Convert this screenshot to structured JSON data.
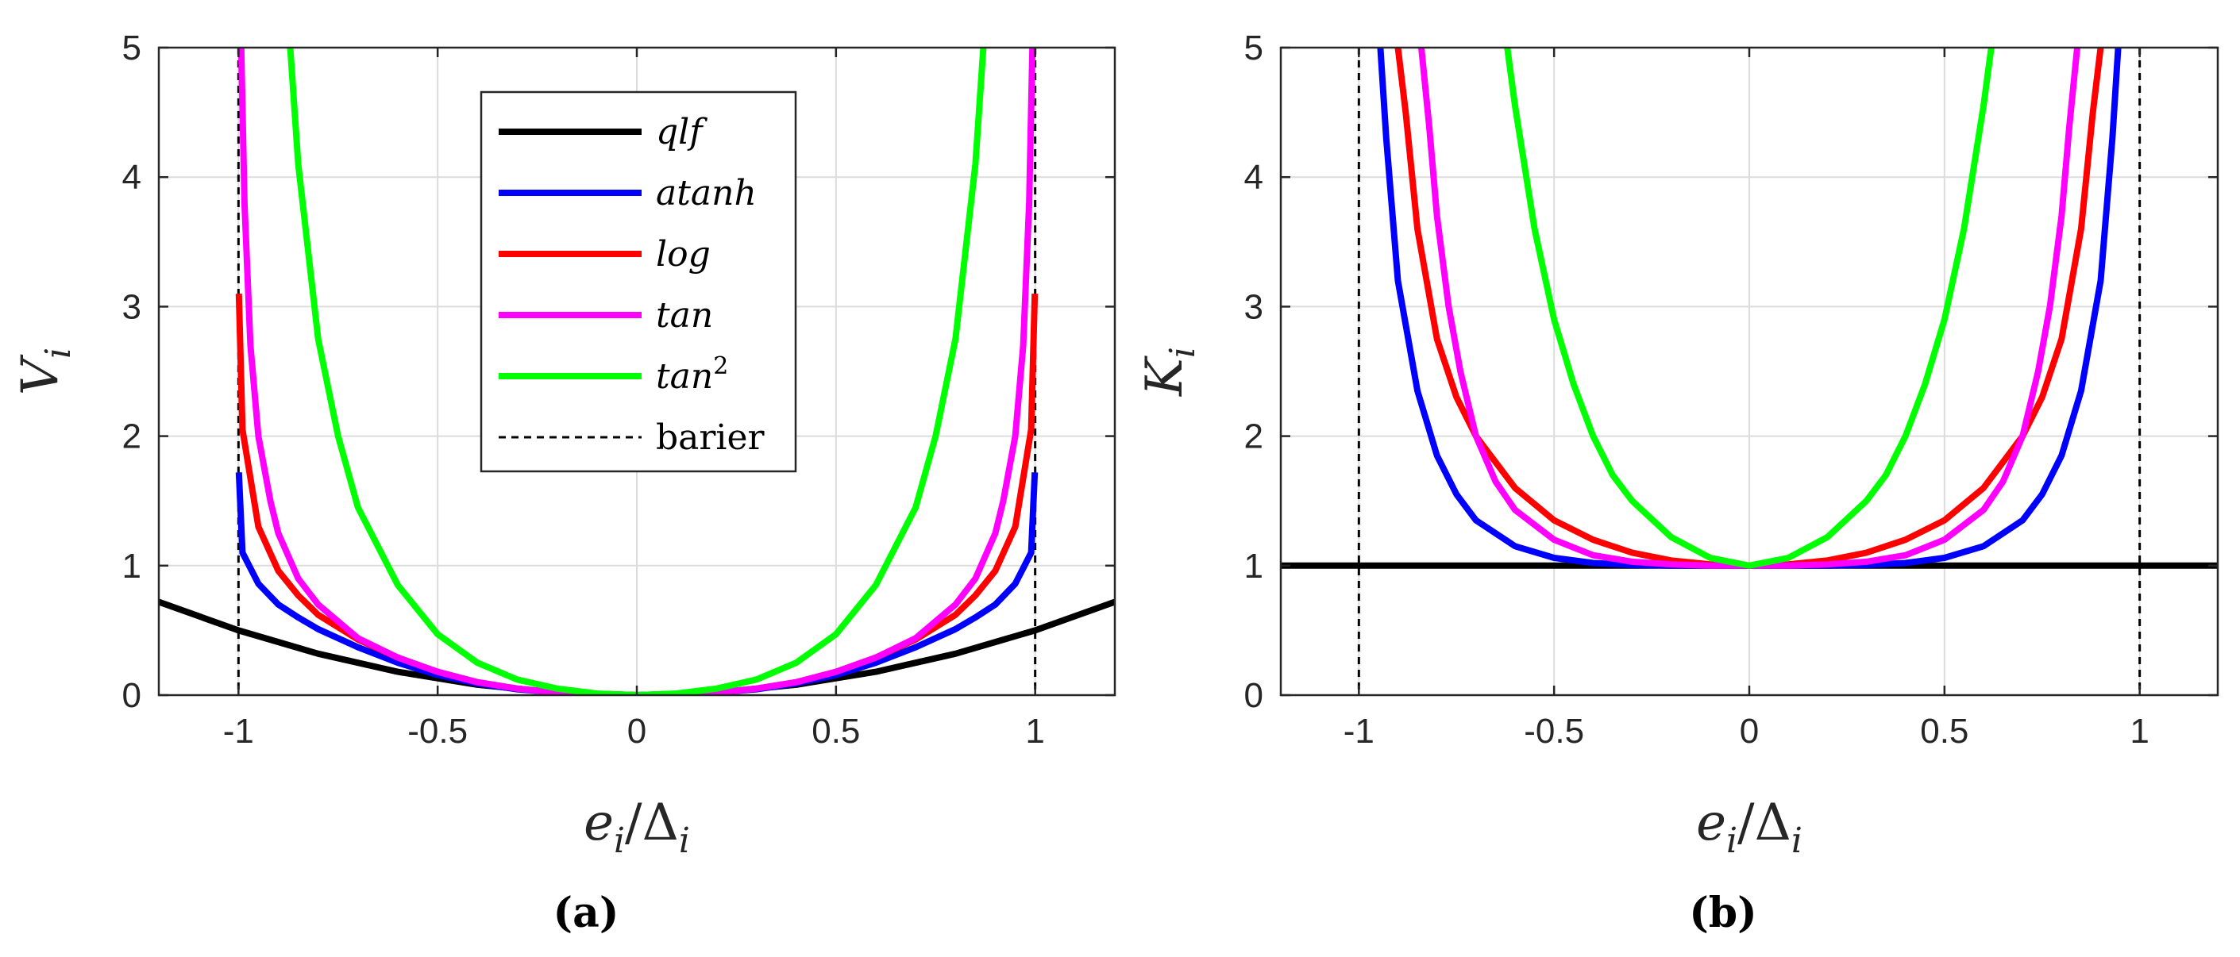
{
  "chart_data": [
    {
      "type": "line",
      "panel_label": "(a)",
      "xlabel": "e_i/Δ_i",
      "xlabel_parts": {
        "base": "e",
        "sub": "i",
        "sep": "/Δ",
        "sub2": "i"
      },
      "ylabel": "V_i",
      "ylabel_parts": {
        "base": "V",
        "sub": "i"
      },
      "xlim": [
        -1.2,
        1.2
      ],
      "ylim": [
        0,
        5
      ],
      "xticks": [
        -1,
        -0.5,
        0,
        0.5,
        1
      ],
      "xtick_labels": [
        "-1",
        "-0.5",
        "0",
        "0.5",
        "1"
      ],
      "yticks": [
        0,
        1,
        2,
        3,
        4,
        5
      ],
      "ytick_labels": [
        "0",
        "1",
        "2",
        "3",
        "4",
        "5"
      ],
      "grid": true,
      "legend": {
        "placement": "top-center",
        "entries": [
          {
            "label": "qlf",
            "color": "#000000",
            "style": "solid"
          },
          {
            "label": "atanh",
            "color": "#0000ff",
            "style": "solid"
          },
          {
            "label": "log",
            "color": "#ff0000",
            "style": "solid"
          },
          {
            "label": "tan",
            "color": "#ff00ff",
            "style": "solid"
          },
          {
            "label": "tan",
            "sup": "2",
            "color": "#00ff00",
            "style": "solid"
          },
          {
            "label": "barier",
            "color": "#000000",
            "style": "dashed"
          }
        ]
      },
      "barriers_x": [
        -1,
        1
      ],
      "series": [
        {
          "name": "qlf",
          "color": "#000000",
          "x": [
            -1.2,
            -1.0,
            -0.8,
            -0.6,
            -0.4,
            -0.2,
            0,
            0.2,
            0.4,
            0.6,
            0.8,
            1.0,
            1.2
          ],
          "y": [
            0.72,
            0.5,
            0.32,
            0.18,
            0.08,
            0.02,
            0,
            0.02,
            0.08,
            0.18,
            0.32,
            0.5,
            0.72
          ]
        },
        {
          "name": "atanh",
          "color": "#0000ff",
          "x": [
            -0.999,
            -0.99,
            -0.95,
            -0.9,
            -0.85,
            -0.8,
            -0.7,
            -0.6,
            -0.5,
            -0.4,
            -0.3,
            -0.2,
            -0.1,
            0,
            0.1,
            0.2,
            0.3,
            0.4,
            0.5,
            0.6,
            0.7,
            0.8,
            0.85,
            0.9,
            0.95,
            0.99,
            0.999
          ],
          "y": [
            1.72,
            1.1,
            0.86,
            0.7,
            0.6,
            0.51,
            0.37,
            0.25,
            0.155,
            0.09,
            0.045,
            0.02,
            0.005,
            0,
            0.005,
            0.02,
            0.045,
            0.09,
            0.155,
            0.25,
            0.37,
            0.51,
            0.6,
            0.7,
            0.86,
            1.1,
            1.72
          ]
        },
        {
          "name": "log",
          "color": "#ff0000",
          "x": [
            -0.999,
            -0.99,
            -0.95,
            -0.9,
            -0.85,
            -0.8,
            -0.7,
            -0.6,
            -0.5,
            -0.4,
            -0.3,
            -0.2,
            -0.1,
            0,
            0.1,
            0.2,
            0.3,
            0.4,
            0.5,
            0.6,
            0.7,
            0.8,
            0.85,
            0.9,
            0.95,
            0.99,
            0.999
          ],
          "y": [
            3.1,
            2.05,
            1.3,
            0.96,
            0.77,
            0.62,
            0.43,
            0.29,
            0.18,
            0.1,
            0.05,
            0.02,
            0.005,
            0,
            0.005,
            0.02,
            0.05,
            0.1,
            0.18,
            0.29,
            0.43,
            0.62,
            0.77,
            0.96,
            1.3,
            2.05,
            3.1
          ]
        },
        {
          "name": "tan",
          "color": "#ff00ff",
          "x": [
            -0.993,
            -0.985,
            -0.97,
            -0.95,
            -0.92,
            -0.9,
            -0.85,
            -0.8,
            -0.7,
            -0.6,
            -0.5,
            -0.4,
            -0.3,
            -0.2,
            -0.1,
            0,
            0.1,
            0.2,
            0.3,
            0.4,
            0.5,
            0.6,
            0.7,
            0.8,
            0.85,
            0.9,
            0.92,
            0.95,
            0.97,
            0.985,
            0.993
          ],
          "y": [
            5,
            3.8,
            2.7,
            2.0,
            1.5,
            1.25,
            0.9,
            0.7,
            0.44,
            0.29,
            0.18,
            0.1,
            0.05,
            0.02,
            0.005,
            0,
            0.005,
            0.02,
            0.05,
            0.1,
            0.18,
            0.29,
            0.44,
            0.7,
            0.9,
            1.25,
            1.5,
            2.0,
            2.7,
            3.8,
            5
          ]
        },
        {
          "name": "tan^2",
          "color": "#00ff00",
          "x": [
            -0.87,
            -0.85,
            -0.8,
            -0.75,
            -0.7,
            -0.6,
            -0.5,
            -0.4,
            -0.3,
            -0.2,
            -0.1,
            0,
            0.1,
            0.2,
            0.3,
            0.4,
            0.5,
            0.6,
            0.7,
            0.75,
            0.8,
            0.85,
            0.87
          ],
          "y": [
            5,
            4.1,
            2.75,
            2.0,
            1.45,
            0.85,
            0.47,
            0.25,
            0.12,
            0.05,
            0.012,
            0,
            0.012,
            0.05,
            0.12,
            0.25,
            0.47,
            0.85,
            1.45,
            2.0,
            2.75,
            4.1,
            5
          ]
        }
      ]
    },
    {
      "type": "line",
      "panel_label": "(b)",
      "xlabel": "e_i/Δ_i",
      "xlabel_parts": {
        "base": "e",
        "sub": "i",
        "sep": "/Δ",
        "sub2": "i"
      },
      "ylabel": "K_i",
      "ylabel_parts": {
        "base": "K",
        "sub": "i"
      },
      "xlim": [
        -1.2,
        1.2
      ],
      "ylim": [
        0,
        5
      ],
      "xticks": [
        -1,
        -0.5,
        0,
        0.5,
        1
      ],
      "xtick_labels": [
        "-1",
        "-0.5",
        "0",
        "0.5",
        "1"
      ],
      "yticks": [
        0,
        1,
        2,
        3,
        4,
        5
      ],
      "ytick_labels": [
        "0",
        "1",
        "2",
        "3",
        "4",
        "5"
      ],
      "grid": true,
      "barriers_x": [
        -1,
        1
      ],
      "series": [
        {
          "name": "qlf",
          "color": "#000000",
          "x": [
            -1.2,
            1.2
          ],
          "y": [
            1,
            1
          ]
        },
        {
          "name": "atanh",
          "color": "#0000ff",
          "x": [
            -0.945,
            -0.93,
            -0.9,
            -0.85,
            -0.8,
            -0.75,
            -0.7,
            -0.6,
            -0.5,
            -0.4,
            -0.3,
            -0.2,
            0,
            0.2,
            0.3,
            0.4,
            0.5,
            0.6,
            0.7,
            0.75,
            0.8,
            0.85,
            0.9,
            0.93,
            0.945
          ],
          "y": [
            5,
            4.3,
            3.2,
            2.35,
            1.85,
            1.55,
            1.35,
            1.15,
            1.06,
            1.02,
            1.005,
            1.0,
            1,
            1.0,
            1.005,
            1.02,
            1.06,
            1.15,
            1.35,
            1.55,
            1.85,
            2.35,
            3.2,
            4.3,
            5
          ]
        },
        {
          "name": "log",
          "color": "#ff0000",
          "x": [
            -0.9,
            -0.88,
            -0.85,
            -0.8,
            -0.75,
            -0.7,
            -0.6,
            -0.5,
            -0.4,
            -0.3,
            -0.2,
            -0.1,
            0,
            0.1,
            0.2,
            0.3,
            0.4,
            0.5,
            0.6,
            0.7,
            0.75,
            0.8,
            0.85,
            0.88,
            0.9
          ],
          "y": [
            5,
            4.5,
            3.6,
            2.75,
            2.3,
            2.0,
            1.6,
            1.35,
            1.2,
            1.1,
            1.04,
            1.01,
            1,
            1.01,
            1.04,
            1.1,
            1.2,
            1.35,
            1.6,
            2.0,
            2.3,
            2.75,
            3.6,
            4.5,
            5
          ]
        },
        {
          "name": "tan",
          "color": "#ff00ff",
          "x": [
            -0.84,
            -0.82,
            -0.8,
            -0.77,
            -0.74,
            -0.7,
            -0.65,
            -0.6,
            -0.5,
            -0.4,
            -0.3,
            -0.2,
            -0.1,
            0,
            0.1,
            0.2,
            0.3,
            0.4,
            0.5,
            0.6,
            0.65,
            0.7,
            0.74,
            0.77,
            0.8,
            0.82,
            0.84
          ],
          "y": [
            5,
            4.4,
            3.7,
            3.0,
            2.5,
            2.0,
            1.65,
            1.43,
            1.2,
            1.08,
            1.03,
            1.01,
            1.0,
            1,
            1.0,
            1.01,
            1.03,
            1.08,
            1.2,
            1.43,
            1.65,
            2.0,
            2.5,
            3.0,
            3.7,
            4.4,
            5
          ]
        },
        {
          "name": "tan^2",
          "color": "#00ff00",
          "x": [
            -0.62,
            -0.6,
            -0.55,
            -0.5,
            -0.45,
            -0.4,
            -0.35,
            -0.3,
            -0.2,
            -0.1,
            0,
            0.1,
            0.2,
            0.3,
            0.35,
            0.4,
            0.45,
            0.5,
            0.55,
            0.6,
            0.62
          ],
          "y": [
            5,
            4.55,
            3.6,
            2.9,
            2.4,
            2.0,
            1.7,
            1.5,
            1.22,
            1.06,
            1,
            1.06,
            1.22,
            1.5,
            1.7,
            2.0,
            2.4,
            2.9,
            3.6,
            4.55,
            5
          ]
        }
      ]
    }
  ]
}
